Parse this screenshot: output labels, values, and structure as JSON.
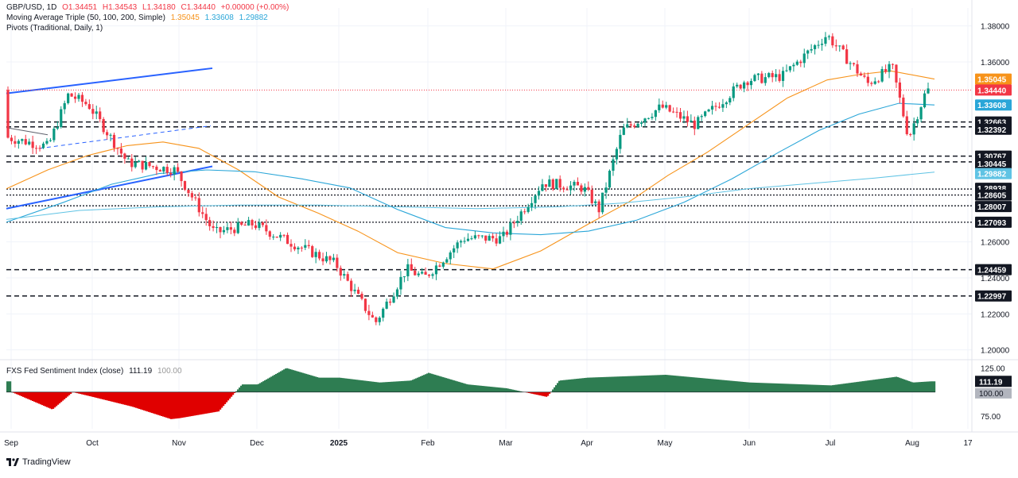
{
  "header": {
    "symbol": "GBP/USD, 1D",
    "open": "O1.34451",
    "high": "H1.34543",
    "low": "L1.34180",
    "close": "C1.34440",
    "change": "+0.00000 (+0.00%)",
    "ma_label": "Moving Average Triple (50, 100, 200, Simple)",
    "ma50": "1.35045",
    "ma100": "1.33608",
    "ma200": "1.29882",
    "pivots_label": "Pivots (Traditional, Daily, 1)"
  },
  "indicator": {
    "label": "FXS Fed Sentiment Index (close)",
    "value": "111.19",
    "baseline": "100.00"
  },
  "branding": {
    "name": "TradingView"
  },
  "colors": {
    "up": "#089981",
    "down": "#f23645",
    "ma50": "#f7931a",
    "ma100": "#2aa6d8",
    "ma200": "#5fc3e4",
    "trend": "#2962ff",
    "sentiment_pos": "#2e7d52",
    "sentiment_neg": "#e00000"
  },
  "chart_data": [
    {
      "type": "candlestick",
      "symbol": "GBP/USD",
      "timeframe": "1D",
      "x_ticks": [
        "Sep",
        "Oct",
        "Nov",
        "Dec",
        "2025",
        "Feb",
        "Mar",
        "Apr",
        "May",
        "Jun",
        "Jul",
        "Aug",
        "17"
      ],
      "y_ticks": [
        "1.38000",
        "1.36000",
        "1.26000",
        "1.24000",
        "1.22000",
        "1.20000"
      ],
      "ylim": [
        1.195,
        1.39
      ],
      "last_price": "1.34440",
      "ma_values": {
        "50": "1.35045",
        "100": "1.33608",
        "200": "1.29882"
      },
      "pivot_levels": [
        "1.32663",
        "1.32392",
        "1.30767",
        "1.30445",
        "1.28938",
        "1.28605",
        "1.28007",
        "1.27093",
        "1.24459",
        "1.22997"
      ],
      "price_path": [
        [
          "Sep",
          1.318
        ],
        [
          "mid-Sep",
          1.313
        ],
        [
          "late-Sep",
          1.342
        ],
        [
          "Oct",
          1.336
        ],
        [
          "mid-Oct",
          1.304
        ],
        [
          "Nov",
          1.3
        ],
        [
          "mid-Nov",
          1.265
        ],
        [
          "Dec",
          1.27
        ],
        [
          "mid-Dec",
          1.262
        ],
        [
          "2025",
          1.248
        ],
        [
          "mid-Jan",
          1.215
        ],
        [
          "late-Jan",
          1.245
        ],
        [
          "Feb",
          1.24
        ],
        [
          "mid-Feb",
          1.262
        ],
        [
          "Mar",
          1.262
        ],
        [
          "mid-Mar",
          1.293
        ],
        [
          "Apr",
          1.29
        ],
        [
          "early-Apr",
          1.278
        ],
        [
          "mid-Apr",
          1.322
        ],
        [
          "May",
          1.335
        ],
        [
          "mid-May",
          1.325
        ],
        [
          "Jun",
          1.35
        ],
        [
          "mid-Jun",
          1.352
        ],
        [
          "Jul",
          1.375
        ],
        [
          "mid-Jul",
          1.348
        ],
        [
          "late-Jul",
          1.357
        ],
        [
          "Aug",
          1.318
        ],
        [
          "Aug-now",
          1.3444
        ]
      ]
    },
    {
      "type": "area",
      "title": "FXS Fed Sentiment Index (close)",
      "x_ticks": [
        "Sep",
        "Oct",
        "Nov",
        "Dec",
        "2025",
        "Feb",
        "Mar",
        "Apr",
        "May",
        "Jun",
        "Jul",
        "Aug",
        "17"
      ],
      "y_ticks": [
        "125.00",
        "100.00",
        "75.00"
      ],
      "baseline": 100,
      "last_value": 111.19,
      "values": [
        [
          "Sep",
          100
        ],
        [
          "mid-Sep",
          82
        ],
        [
          "late-Sep",
          100
        ],
        [
          "Oct",
          95
        ],
        [
          "mid-Oct",
          85
        ],
        [
          "Oct-end",
          72
        ],
        [
          "Nov",
          73
        ],
        [
          "mid-Nov",
          80
        ],
        [
          "late-Nov",
          108
        ],
        [
          "Dec",
          108
        ],
        [
          "mid-Dec",
          125
        ],
        [
          "late-Dec",
          115
        ],
        [
          "2025",
          115
        ],
        [
          "mid-Jan",
          110
        ],
        [
          "late-Jan",
          112
        ],
        [
          "Feb",
          120
        ],
        [
          "mid-Feb",
          108
        ],
        [
          "Mar",
          104
        ],
        [
          "mid-Mar",
          95
        ],
        [
          "late-Mar",
          112
        ],
        [
          "Apr",
          115
        ],
        [
          "May",
          118
        ],
        [
          "Jun",
          110
        ],
        [
          "Jul",
          107
        ],
        [
          "late-Jul",
          116
        ],
        [
          "Aug",
          110
        ],
        [
          "Aug-now",
          111.19
        ]
      ]
    }
  ]
}
